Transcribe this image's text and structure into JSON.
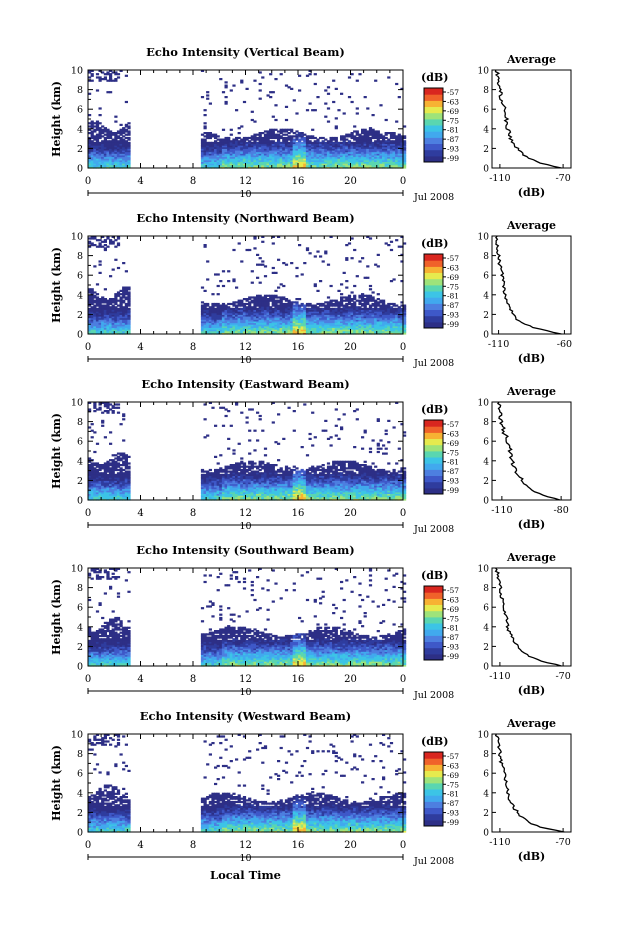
{
  "colors": {
    "scale": [
      "#2d2f86",
      "#2f3c9e",
      "#3e58c8",
      "#4d7fe0",
      "#41a9ee",
      "#3cc4e6",
      "#5ad6b0",
      "#9ee37a",
      "#e6ea4e",
      "#f7b233",
      "#f0622a",
      "#d9261f"
    ],
    "axis": "#000000",
    "background": "#ffffff"
  },
  "footer": {
    "xlabel": "Local Time"
  },
  "chart_data": [
    {
      "type": "heatmap",
      "title": "Echo Intensity (Vertical Beam)",
      "ylabel": "Height (km)",
      "xticks": [
        "0",
        "4",
        "8",
        "12",
        "16",
        "20",
        "0"
      ],
      "yticks": [
        "0",
        "2",
        "4",
        "6",
        "8",
        "10"
      ],
      "xlim": [
        0,
        24
      ],
      "ylim": [
        0,
        10
      ],
      "date_day": "10",
      "date_label": "Jul 2008",
      "colorbar": {
        "unit": "(dB)",
        "ticks": [
          "-57",
          "-63",
          "-69",
          "-75",
          "-81",
          "-87",
          "-93",
          "-99"
        ]
      },
      "average": {
        "title": "Average",
        "xlabel": "(dB)",
        "xticks": [
          "-110",
          "-70"
        ],
        "xlim": [
          -115,
          -65
        ],
        "profile": [
          {
            "h": 0.0,
            "db": -70
          },
          {
            "h": 0.3,
            "db": -79
          },
          {
            "h": 0.6,
            "db": -86
          },
          {
            "h": 1.0,
            "db": -92
          },
          {
            "h": 1.5,
            "db": -96
          },
          {
            "h": 2.0,
            "db": -99
          },
          {
            "h": 2.5,
            "db": -101
          },
          {
            "h": 3.0,
            "db": -103
          },
          {
            "h": 3.5,
            "db": -104
          },
          {
            "h": 4.0,
            "db": -105
          },
          {
            "h": 5.0,
            "db": -106
          },
          {
            "h": 6.0,
            "db": -107
          },
          {
            "h": 7.0,
            "db": -109
          },
          {
            "h": 8.0,
            "db": -110
          },
          {
            "h": 9.0,
            "db": -111
          },
          {
            "h": 10.0,
            "db": -112
          }
        ]
      }
    },
    {
      "type": "heatmap",
      "title": "Echo Intensity (Northward Beam)",
      "ylabel": "Height (km)",
      "xticks": [
        "0",
        "4",
        "8",
        "12",
        "16",
        "20",
        "0"
      ],
      "yticks": [
        "0",
        "2",
        "4",
        "6",
        "8",
        "10"
      ],
      "xlim": [
        0,
        24
      ],
      "ylim": [
        0,
        10
      ],
      "date_day": "10",
      "date_label": "Jul 2008",
      "colorbar": {
        "unit": "(dB)",
        "ticks": [
          "-57",
          "-63",
          "-69",
          "-75",
          "-81",
          "-87",
          "-93",
          "-99"
        ]
      },
      "average": {
        "title": "Average",
        "xlabel": "(dB)",
        "xticks": [
          "-110",
          "-60"
        ],
        "xlim": [
          -115,
          -55
        ],
        "profile": [
          {
            "h": 0.0,
            "db": -62
          },
          {
            "h": 0.3,
            "db": -72
          },
          {
            "h": 0.6,
            "db": -82
          },
          {
            "h": 1.0,
            "db": -90
          },
          {
            "h": 1.5,
            "db": -96
          },
          {
            "h": 2.0,
            "db": -99
          },
          {
            "h": 2.5,
            "db": -101
          },
          {
            "h": 3.0,
            "db": -102
          },
          {
            "h": 3.5,
            "db": -104
          },
          {
            "h": 4.0,
            "db": -105
          },
          {
            "h": 5.0,
            "db": -106
          },
          {
            "h": 6.0,
            "db": -107
          },
          {
            "h": 7.0,
            "db": -109
          },
          {
            "h": 8.0,
            "db": -110
          },
          {
            "h": 9.0,
            "db": -111
          },
          {
            "h": 10.0,
            "db": -112
          }
        ]
      }
    },
    {
      "type": "heatmap",
      "title": "Echo Intensity (Eastward Beam)",
      "ylabel": "Height (km)",
      "xticks": [
        "0",
        "4",
        "8",
        "12",
        "16",
        "20",
        "0"
      ],
      "yticks": [
        "0",
        "2",
        "4",
        "6",
        "8",
        "10"
      ],
      "xlim": [
        0,
        24
      ],
      "ylim": [
        0,
        10
      ],
      "date_day": "10",
      "date_label": "Jul 2008",
      "colorbar": {
        "unit": "(dB)",
        "ticks": [
          "-57",
          "-63",
          "-69",
          "-75",
          "-81",
          "-87",
          "-93",
          "-99"
        ]
      },
      "average": {
        "title": "Average",
        "xlabel": "(dB)",
        "xticks": [
          "-110",
          "-80"
        ],
        "xlim": [
          -115,
          -75
        ],
        "profile": [
          {
            "h": 0.0,
            "db": -80
          },
          {
            "h": 0.3,
            "db": -86
          },
          {
            "h": 0.6,
            "db": -91
          },
          {
            "h": 1.0,
            "db": -95
          },
          {
            "h": 1.5,
            "db": -98
          },
          {
            "h": 2.0,
            "db": -100
          },
          {
            "h": 2.5,
            "db": -101
          },
          {
            "h": 3.0,
            "db": -103
          },
          {
            "h": 3.5,
            "db": -104
          },
          {
            "h": 4.0,
            "db": -105
          },
          {
            "h": 5.0,
            "db": -106
          },
          {
            "h": 6.0,
            "db": -107
          },
          {
            "h": 7.0,
            "db": -109
          },
          {
            "h": 8.0,
            "db": -110
          },
          {
            "h": 9.0,
            "db": -111
          },
          {
            "h": 10.0,
            "db": -112
          }
        ]
      }
    },
    {
      "type": "heatmap",
      "title": "Echo Intensity (Southward Beam)",
      "ylabel": "Height (km)",
      "xticks": [
        "0",
        "4",
        "8",
        "12",
        "16",
        "20",
        "0"
      ],
      "yticks": [
        "0",
        "2",
        "4",
        "6",
        "8",
        "10"
      ],
      "xlim": [
        0,
        24
      ],
      "ylim": [
        0,
        10
      ],
      "date_day": "10",
      "date_label": "Jul 2008",
      "colorbar": {
        "unit": "(dB)",
        "ticks": [
          "-57",
          "-63",
          "-69",
          "-75",
          "-81",
          "-87",
          "-93",
          "-99"
        ]
      },
      "average": {
        "title": "Average",
        "xlabel": "(dB)",
        "xticks": [
          "-110",
          "-70"
        ],
        "xlim": [
          -115,
          -65
        ],
        "profile": [
          {
            "h": 0.0,
            "db": -70
          },
          {
            "h": 0.3,
            "db": -79
          },
          {
            "h": 0.6,
            "db": -86
          },
          {
            "h": 1.0,
            "db": -92
          },
          {
            "h": 1.5,
            "db": -96
          },
          {
            "h": 2.0,
            "db": -99
          },
          {
            "h": 2.5,
            "db": -101
          },
          {
            "h": 3.0,
            "db": -103
          },
          {
            "h": 3.5,
            "db": -104
          },
          {
            "h": 4.0,
            "db": -105
          },
          {
            "h": 5.0,
            "db": -106
          },
          {
            "h": 6.0,
            "db": -107
          },
          {
            "h": 7.0,
            "db": -109
          },
          {
            "h": 8.0,
            "db": -110
          },
          {
            "h": 9.0,
            "db": -111
          },
          {
            "h": 10.0,
            "db": -112
          }
        ]
      }
    },
    {
      "type": "heatmap",
      "title": "Echo Intensity (Westward Beam)",
      "ylabel": "Height (km)",
      "xticks": [
        "0",
        "4",
        "8",
        "12",
        "16",
        "20",
        "0"
      ],
      "yticks": [
        "0",
        "2",
        "4",
        "6",
        "8",
        "10"
      ],
      "xlim": [
        0,
        24
      ],
      "ylim": [
        0,
        10
      ],
      "date_day": "10",
      "date_label": "Jul 2008",
      "colorbar": {
        "unit": "(dB)",
        "ticks": [
          "-57",
          "-63",
          "-69",
          "-75",
          "-81",
          "-87",
          "-93",
          "-99"
        ]
      },
      "average": {
        "title": "Average",
        "xlabel": "(dB)",
        "xticks": [
          "-110",
          "-70"
        ],
        "xlim": [
          -115,
          -65
        ],
        "profile": [
          {
            "h": 0.0,
            "db": -70
          },
          {
            "h": 0.3,
            "db": -79
          },
          {
            "h": 0.6,
            "db": -86
          },
          {
            "h": 1.0,
            "db": -92
          },
          {
            "h": 1.5,
            "db": -96
          },
          {
            "h": 2.0,
            "db": -99
          },
          {
            "h": 2.5,
            "db": -101
          },
          {
            "h": 3.0,
            "db": -103
          },
          {
            "h": 3.5,
            "db": -104
          },
          {
            "h": 4.0,
            "db": -105
          },
          {
            "h": 5.0,
            "db": -106
          },
          {
            "h": 6.0,
            "db": -107
          },
          {
            "h": 7.0,
            "db": -109
          },
          {
            "h": 8.0,
            "db": -110
          },
          {
            "h": 9.0,
            "db": -111
          },
          {
            "h": 10.0,
            "db": -112
          }
        ]
      }
    }
  ]
}
